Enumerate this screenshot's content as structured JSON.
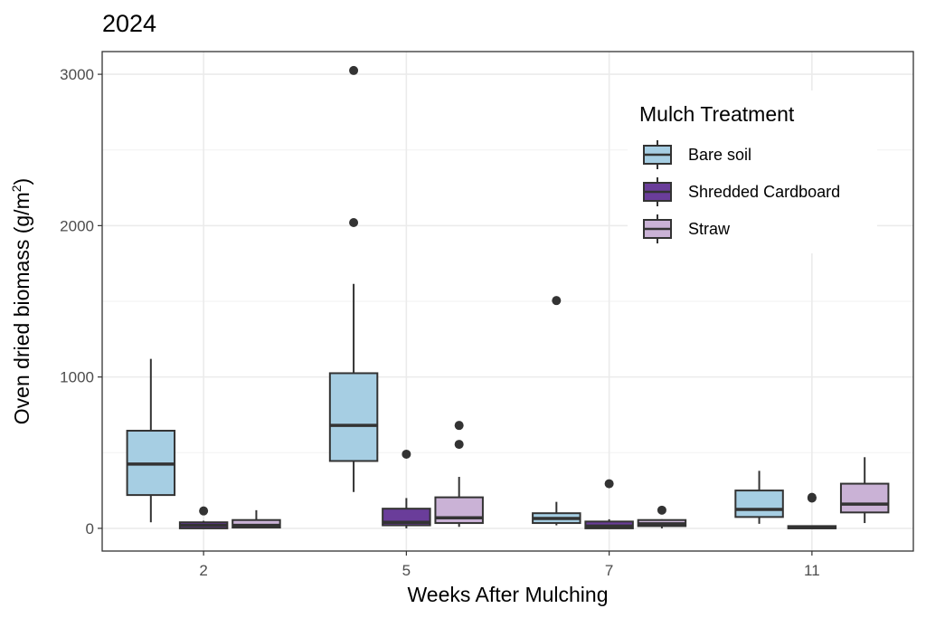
{
  "chart_data": {
    "type": "boxplot",
    "title": "2024",
    "xlabel": "Weeks After Mulching",
    "ylabel": "Oven dried biomass  (g/m",
    "ylabel_superscript": "2",
    "ylabel_close": ")",
    "ylim": [
      -150,
      3150
    ],
    "yticks": [
      0,
      1000,
      2000,
      3000
    ],
    "categories": [
      "2",
      "5",
      "7",
      "11"
    ],
    "legend": {
      "title": "Mulch Treatment",
      "position": "top-right"
    },
    "series": [
      {
        "name": "Bare soil",
        "color": "#a6cee3",
        "boxes": [
          {
            "category": "2",
            "whisker_low": 40,
            "q1": 220,
            "median": 425,
            "q3": 645,
            "whisker_high": 1120,
            "outliers": []
          },
          {
            "category": "5",
            "whisker_low": 240,
            "q1": 445,
            "median": 680,
            "q3": 1025,
            "whisker_high": 1615,
            "outliers": [
              2020,
              3025
            ]
          },
          {
            "category": "7",
            "whisker_low": 20,
            "q1": 35,
            "median": 65,
            "q3": 100,
            "whisker_high": 175,
            "outliers": [
              1505
            ]
          },
          {
            "category": "11",
            "whisker_low": 30,
            "q1": 75,
            "median": 125,
            "q3": 250,
            "whisker_high": 380,
            "outliers": []
          }
        ]
      },
      {
        "name": "Shredded Cardboard",
        "color": "#6a3d9a",
        "boxes": [
          {
            "category": "2",
            "whisker_low": 0,
            "q1": 0,
            "median": 20,
            "q3": 40,
            "whisker_high": 50,
            "outliers": [
              115
            ]
          },
          {
            "category": "5",
            "whisker_low": 0,
            "q1": 20,
            "median": 40,
            "q3": 130,
            "whisker_high": 200,
            "outliers": [
              490
            ]
          },
          {
            "category": "7",
            "whisker_low": 0,
            "q1": 0,
            "median": 15,
            "q3": 45,
            "whisker_high": 60,
            "outliers": [
              295
            ]
          },
          {
            "category": "11",
            "whisker_low": 0,
            "q1": 0,
            "median": 5,
            "q3": 15,
            "whisker_high": 20,
            "outliers": [
              205,
              200
            ]
          }
        ]
      },
      {
        "name": "Straw",
        "color": "#cab2d6",
        "boxes": [
          {
            "category": "2",
            "whisker_low": 0,
            "q1": 5,
            "median": 20,
            "q3": 55,
            "whisker_high": 120,
            "outliers": []
          },
          {
            "category": "5",
            "whisker_low": 10,
            "q1": 35,
            "median": 70,
            "q3": 205,
            "whisker_high": 340,
            "outliers": [
              555,
              680
            ]
          },
          {
            "category": "7",
            "whisker_low": 0,
            "q1": 15,
            "median": 30,
            "q3": 55,
            "whisker_high": 60,
            "outliers": [
              120
            ]
          },
          {
            "category": "11",
            "whisker_low": 35,
            "q1": 105,
            "median": 160,
            "q3": 295,
            "whisker_high": 470,
            "outliers": []
          }
        ]
      }
    ],
    "grid": true
  }
}
